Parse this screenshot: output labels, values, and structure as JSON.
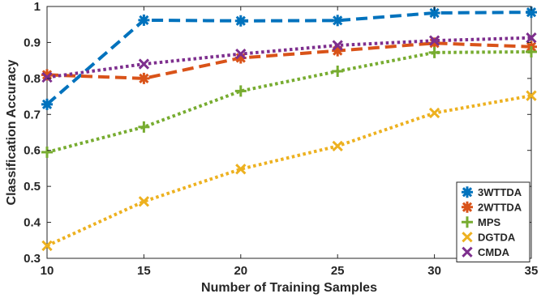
{
  "chart_data": {
    "type": "line",
    "title": "",
    "xlabel": "Number of Training Samples",
    "ylabel": "Classification Accuracy",
    "xlim": [
      10,
      35
    ],
    "ylim": [
      0.3,
      1.0
    ],
    "x_ticks": [
      "10",
      "15",
      "20",
      "25",
      "30",
      "35"
    ],
    "y_ticks": [
      "0.3",
      "0.4",
      "0.5",
      "0.6",
      "0.7",
      "0.8",
      "0.9",
      "1"
    ],
    "x": [
      10,
      15,
      20,
      25,
      30,
      35
    ],
    "grid": false,
    "legend_position": "bottom-right",
    "series": [
      {
        "name": "3WTTDA",
        "values": [
          0.728,
          0.962,
          0.96,
          0.961,
          0.982,
          0.984
        ],
        "color": "#0072BD",
        "linestyle": "dashed",
        "marker": "asterisk"
      },
      {
        "name": "2WTTDA",
        "values": [
          0.81,
          0.8,
          0.857,
          0.877,
          0.898,
          0.888
        ],
        "color": "#D95319",
        "linestyle": "dashed",
        "marker": "asterisk"
      },
      {
        "name": "MPS",
        "values": [
          0.595,
          0.665,
          0.765,
          0.82,
          0.872,
          0.874
        ],
        "color": "#77AC30",
        "linestyle": "dotted",
        "marker": "plus"
      },
      {
        "name": "DGTDA",
        "values": [
          0.335,
          0.458,
          0.548,
          0.612,
          0.704,
          0.752
        ],
        "color": "#EDB120",
        "linestyle": "dotted",
        "marker": "x"
      },
      {
        "name": "CMDA",
        "values": [
          0.803,
          0.84,
          0.868,
          0.892,
          0.905,
          0.913
        ],
        "color": "#7E2F8E",
        "linestyle": "dotted",
        "marker": "x"
      }
    ]
  }
}
